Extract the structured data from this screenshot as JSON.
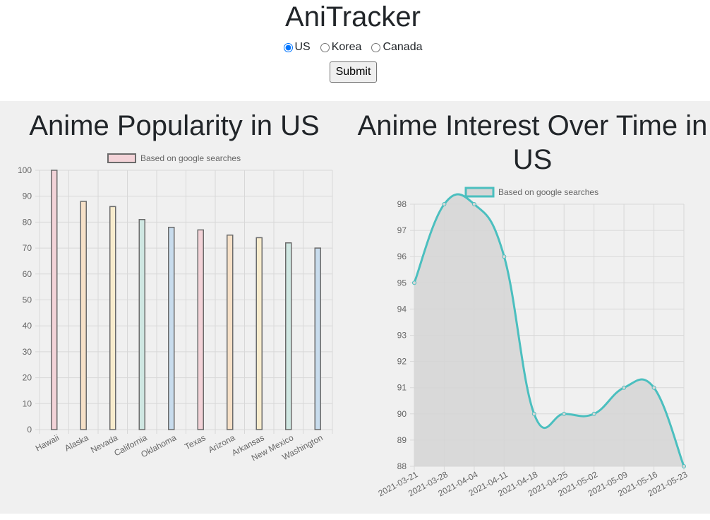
{
  "app": {
    "title": "AniTracker",
    "radio_options": [
      {
        "label": "US",
        "checked": true
      },
      {
        "label": "Korea",
        "checked": false
      },
      {
        "label": "Canada",
        "checked": false
      }
    ],
    "submit_label": "Submit"
  },
  "chart_data": [
    {
      "type": "bar",
      "title": "Anime Popularity in US",
      "legend": "Based on google searches",
      "legend_position": "top",
      "grid": true,
      "categories": [
        "Hawaii",
        "Alaska",
        "Nevada",
        "California",
        "Oklahoma",
        "Texas",
        "Arizona",
        "Arkansas",
        "New Mexico",
        "Washington"
      ],
      "values": [
        100,
        88,
        86,
        81,
        78,
        77,
        75,
        74,
        72,
        70
      ],
      "ylim": [
        0,
        100
      ],
      "yticks": [
        0,
        10,
        20,
        30,
        40,
        50,
        60,
        70,
        80,
        90,
        100
      ],
      "bar_colors": [
        "#f3d3d8",
        "#f6e0c7",
        "#f8eccd",
        "#cfe7e2",
        "#c8dced",
        "#f3d3d8",
        "#f6e0c7",
        "#f8eccd",
        "#cfe7e2",
        "#c8dced"
      ],
      "border_color": "#6b6b6b"
    },
    {
      "type": "area",
      "title": "Anime Interest Over Time in US",
      "legend": "Based on google searches",
      "legend_position": "top",
      "grid": true,
      "x": [
        "2021-03-21",
        "2021-03-28",
        "2021-04-04",
        "2021-04-11",
        "2021-04-18",
        "2021-04-25",
        "2021-05-02",
        "2021-05-09",
        "2021-05-16",
        "2021-05-23"
      ],
      "values": [
        95,
        98,
        98,
        96,
        90,
        90,
        90,
        91,
        91,
        88
      ],
      "ylim": [
        88,
        98
      ],
      "yticks": [
        88,
        89,
        90,
        91,
        92,
        93,
        94,
        95,
        96,
        97,
        98
      ],
      "line_color": "#4bbfbf",
      "fill_color": "#d6d6d6"
    }
  ]
}
